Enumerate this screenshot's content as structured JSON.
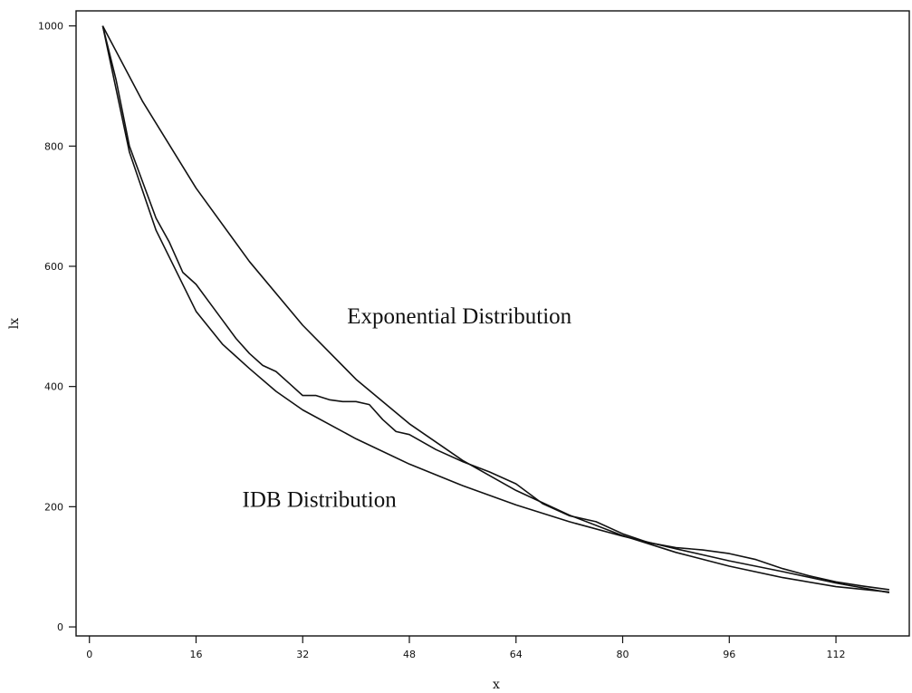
{
  "chart_data": {
    "type": "line",
    "xlabel": "x",
    "ylabel": "lx",
    "xlim": [
      -2,
      123
    ],
    "ylim": [
      -15,
      1025
    ],
    "xticks": [
      0,
      16,
      32,
      48,
      64,
      80,
      96,
      112
    ],
    "yticks": [
      0,
      200,
      400,
      600,
      800,
      1000
    ],
    "grid": false,
    "annotations": [
      {
        "text": "Exponential Distribution",
        "x": 55.5,
        "y": 505
      },
      {
        "text": "IDB Distribution",
        "x": 34.5,
        "y": 200
      }
    ],
    "series": [
      {
        "x": [
          2,
          8,
          16,
          24,
          32,
          40,
          48,
          56,
          64,
          72,
          80,
          88,
          96,
          104,
          112,
          120
        ],
        "values": [
          1000,
          874,
          730,
          608,
          502,
          412,
          338,
          277,
          227,
          186,
          152,
          124,
          101,
          82,
          67,
          58
        ]
      },
      {
        "x": [
          2,
          6,
          10,
          16,
          20,
          24,
          28,
          32,
          40,
          48,
          56,
          64,
          72,
          80,
          88,
          96,
          104,
          112,
          120
        ],
        "values": [
          1000,
          790,
          660,
          525,
          470,
          430,
          392,
          361,
          313,
          271,
          235,
          203,
          175,
          151,
          130,
          110,
          92,
          73,
          57
        ]
      },
      {
        "x": [
          2,
          4,
          6,
          8,
          10,
          12,
          14,
          16,
          18,
          20,
          22,
          24,
          26,
          28,
          30,
          32,
          34,
          36,
          38,
          40,
          42,
          44,
          46,
          48,
          52,
          56,
          60,
          64,
          68,
          72,
          76,
          80,
          84,
          88,
          92,
          96,
          100,
          104,
          108,
          112,
          116,
          120
        ],
        "values": [
          1000,
          910,
          800,
          740,
          680,
          640,
          590,
          570,
          540,
          510,
          480,
          455,
          435,
          425,
          405,
          385,
          385,
          378,
          375,
          375,
          370,
          345,
          325,
          320,
          295,
          275,
          258,
          238,
          205,
          185,
          175,
          155,
          140,
          132,
          128,
          122,
          112,
          97,
          85,
          75,
          68,
          62
        ]
      }
    ]
  }
}
